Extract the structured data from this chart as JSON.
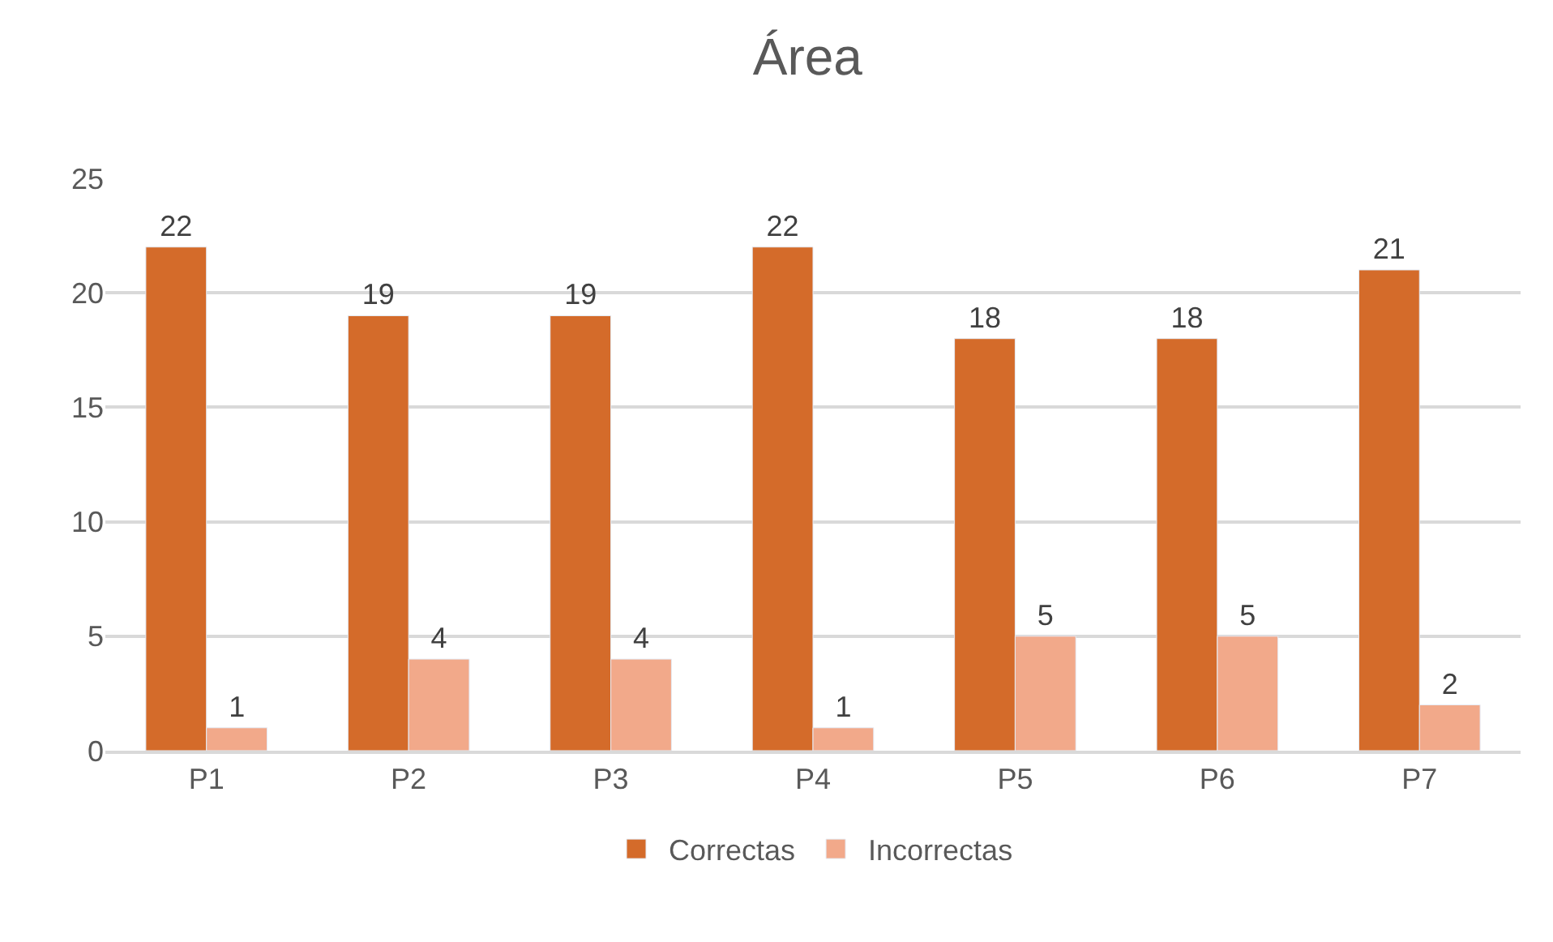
{
  "chart_data": {
    "type": "bar",
    "title": "Área",
    "categories": [
      "P1",
      "P2",
      "P3",
      "P4",
      "P5",
      "P6",
      "P7"
    ],
    "series": [
      {
        "name": "Correctas",
        "color": "#d46b2a",
        "values": [
          22,
          19,
          19,
          22,
          18,
          18,
          21
        ]
      },
      {
        "name": "Incorrectas",
        "color": "#f2a98a",
        "values": [
          1,
          4,
          4,
          1,
          5,
          5,
          2
        ]
      }
    ],
    "ylim": [
      0,
      25
    ],
    "yticks": [
      0,
      5,
      10,
      15,
      20,
      25
    ],
    "grid": "y",
    "legend": "bottom",
    "data_labels": true
  }
}
